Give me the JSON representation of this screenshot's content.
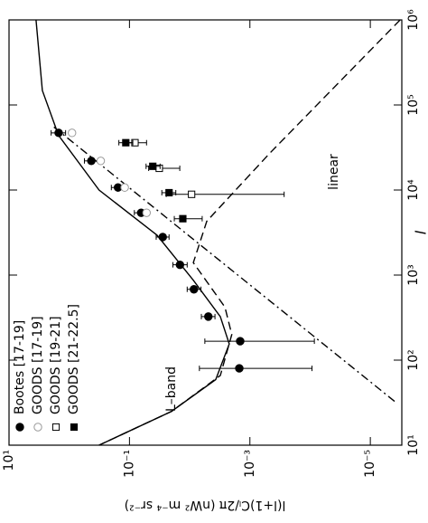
{
  "chart_data": {
    "type": "scatter",
    "x_label": "l",
    "y_label": "l(l+1)Cₗ/2π (nW² m⁻⁴ sr⁻²)",
    "log_x": true,
    "log_y": true,
    "xlim": [
      10,
      1000000
    ],
    "ylim": [
      3e-06,
      10
    ],
    "xticks": [
      {
        "value": 10,
        "label": "10¹"
      },
      {
        "value": 100,
        "label": "10²"
      },
      {
        "value": 1000,
        "label": "10³"
      },
      {
        "value": 10000,
        "label": "10⁴"
      },
      {
        "value": 100000,
        "label": "10⁵"
      },
      {
        "value": 1000000,
        "label": "10⁶"
      }
    ],
    "yticks": [
      {
        "value": 10,
        "label": "10¹"
      },
      {
        "value": 0.1,
        "label": "10⁻¹"
      },
      {
        "value": 0.001,
        "label": "10⁻³"
      },
      {
        "value": 1e-05,
        "label": "10⁻⁵"
      }
    ],
    "legend": "upper left",
    "series": [
      {
        "name": "Bootes [17-19]",
        "marker": "filled-circle",
        "color": "#000000",
        "x": [
          47000,
          22000,
          10700,
          5400,
          2800,
          1320,
          680,
          325,
          167,
          80
        ],
        "values": [
          1.5,
          0.43,
          0.155,
          0.064,
          0.028,
          0.0145,
          0.0085,
          0.0049,
          0.00145,
          0.0015
        ],
        "upper": [
          2.0,
          0.56,
          0.2,
          0.083,
          0.036,
          0.019,
          0.011,
          0.0064,
          0.0056,
          0.0069
        ],
        "lower": [
          1.15,
          0.33,
          0.12,
          0.049,
          0.022,
          0.011,
          0.0065,
          0.0038,
          8.5e-05,
          9.3e-05
        ]
      },
      {
        "name": "GOODS [17-19]",
        "marker": "open-circle",
        "color": "#999999",
        "x": [
          47000,
          22000,
          10700,
          5400
        ],
        "values": [
          0.9,
          0.3,
          0.12,
          0.052
        ]
      },
      {
        "name": "GOODS [19-21]",
        "marker": "open-square",
        "color": "#000000",
        "x": [
          36000,
          18000,
          8900
        ],
        "values": [
          0.081,
          0.032,
          0.0093
        ],
        "upper": [
          0.115,
          0.048,
          0.0245
        ],
        "lower": [
          0.052,
          0.0146,
          0.00027
        ]
      },
      {
        "name": "GOODS [21-22.5]",
        "marker": "filled-square",
        "color": "#000000",
        "x": [
          36000,
          19000,
          9300,
          4600
        ],
        "values": [
          0.115,
          0.041,
          0.022,
          0.013
        ],
        "upper": [
          0.15,
          0.053,
          0.029,
          0.018
        ],
        "lower": [
          0.088,
          0.031,
          0.017,
          0.0062
        ]
      }
    ],
    "curves": [
      {
        "style": "solid",
        "x": [
          1000000,
          148000,
          44000,
          10000,
          2950,
          870,
          325,
          155,
          59,
          25,
          10
        ],
        "values": [
          3.56,
          2.8,
          1.51,
          0.32,
          0.035,
          0.0087,
          0.0031,
          0.0022,
          0.0037,
          0.02,
          0.32
        ]
      },
      {
        "style": "dashed",
        "x": [
          1000000,
          27000,
          4300,
          1400,
          420,
          200,
          66,
          25,
          10
        ],
        "values": [
          3.2e-06,
          0.00047,
          0.0052,
          0.0087,
          0.0026,
          0.002,
          0.0031,
          0.02,
          0.32
        ]
      },
      {
        "style": "dashdot",
        "x": [
          55000,
          32
        ],
        "values": [
          1.8,
          3.8e-06
        ]
      }
    ],
    "annotations": [
      "L–band",
      "linear"
    ]
  }
}
